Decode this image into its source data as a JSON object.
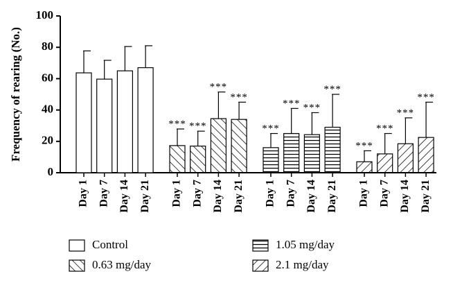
{
  "chart_data": {
    "type": "bar",
    "y_label": "Frequency of rearing (No.)",
    "categories": [
      "Day 1",
      "Day 7",
      "Day 14",
      "Day 21"
    ],
    "ylim": [
      0,
      100
    ],
    "yticks": [
      0,
      20,
      40,
      60,
      80,
      100
    ],
    "series": [
      {
        "name": "Control",
        "pattern": "none",
        "values": [
          63.7,
          59.7,
          65,
          67
        ],
        "errors": [
          14,
          12,
          15.5,
          14
        ]
      },
      {
        "name": "0.63 mg/day",
        "pattern": "backslash",
        "values": [
          17.3,
          17,
          34.5,
          34
        ],
        "errors": [
          10.6,
          9.5,
          17,
          11
        ],
        "annotation": "***"
      },
      {
        "name": "1.05 mg/day",
        "pattern": "horizontal",
        "values": [
          16,
          25,
          24.3,
          29
        ],
        "errors": [
          9,
          16,
          14,
          21
        ],
        "annotation": "***"
      },
      {
        "name": "2.1 mg/day",
        "pattern": "slash",
        "values": [
          7,
          12,
          18.5,
          22.5
        ],
        "errors": [
          7,
          13,
          16.5,
          22.5
        ],
        "annotation": "***"
      }
    ]
  }
}
